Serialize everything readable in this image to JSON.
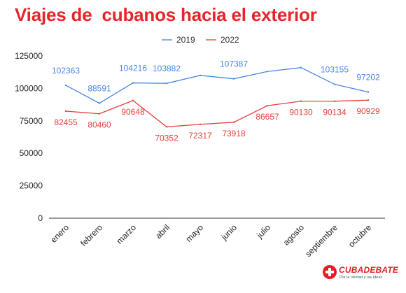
{
  "chart_data": {
    "type": "line",
    "title": "Viajes de  cubanos hacia el exterior",
    "categories": [
      "enero",
      "febrero",
      "marzo",
      "abril",
      "mayo",
      "junio",
      "julio",
      "agosto",
      "septiembre",
      "octubre"
    ],
    "series": [
      {
        "name": "2019",
        "color": "#4a86e8",
        "values": [
          102363,
          88591,
          104216,
          103882,
          110000,
          107387,
          113000,
          116000,
          103155,
          97202
        ],
        "labels": [
          "102363",
          "88591",
          "104216",
          "103882",
          "",
          "107387",
          "",
          "",
          "103155",
          "97202"
        ]
      },
      {
        "name": "2022",
        "color": "#e8403b",
        "values": [
          82455,
          80460,
          90648,
          70352,
          72317,
          73918,
          86657,
          90130,
          90134,
          90929
        ],
        "labels": [
          "82455",
          "80460",
          "90648",
          "70352",
          "72317",
          "73918",
          "86657",
          "90130",
          "90134",
          "90929"
        ]
      }
    ],
    "yticks": [
      "125000",
      "100000",
      "75000",
      "50000",
      "25000",
      "0"
    ],
    "ylim": [
      0,
      125000
    ],
    "grid": false,
    "legend_position": "top-center"
  },
  "logo": {
    "text": "CUBADEBATE",
    "tagline": "Por la Verdad y las Ideas",
    "icon": "red-circle-logo-icon"
  }
}
